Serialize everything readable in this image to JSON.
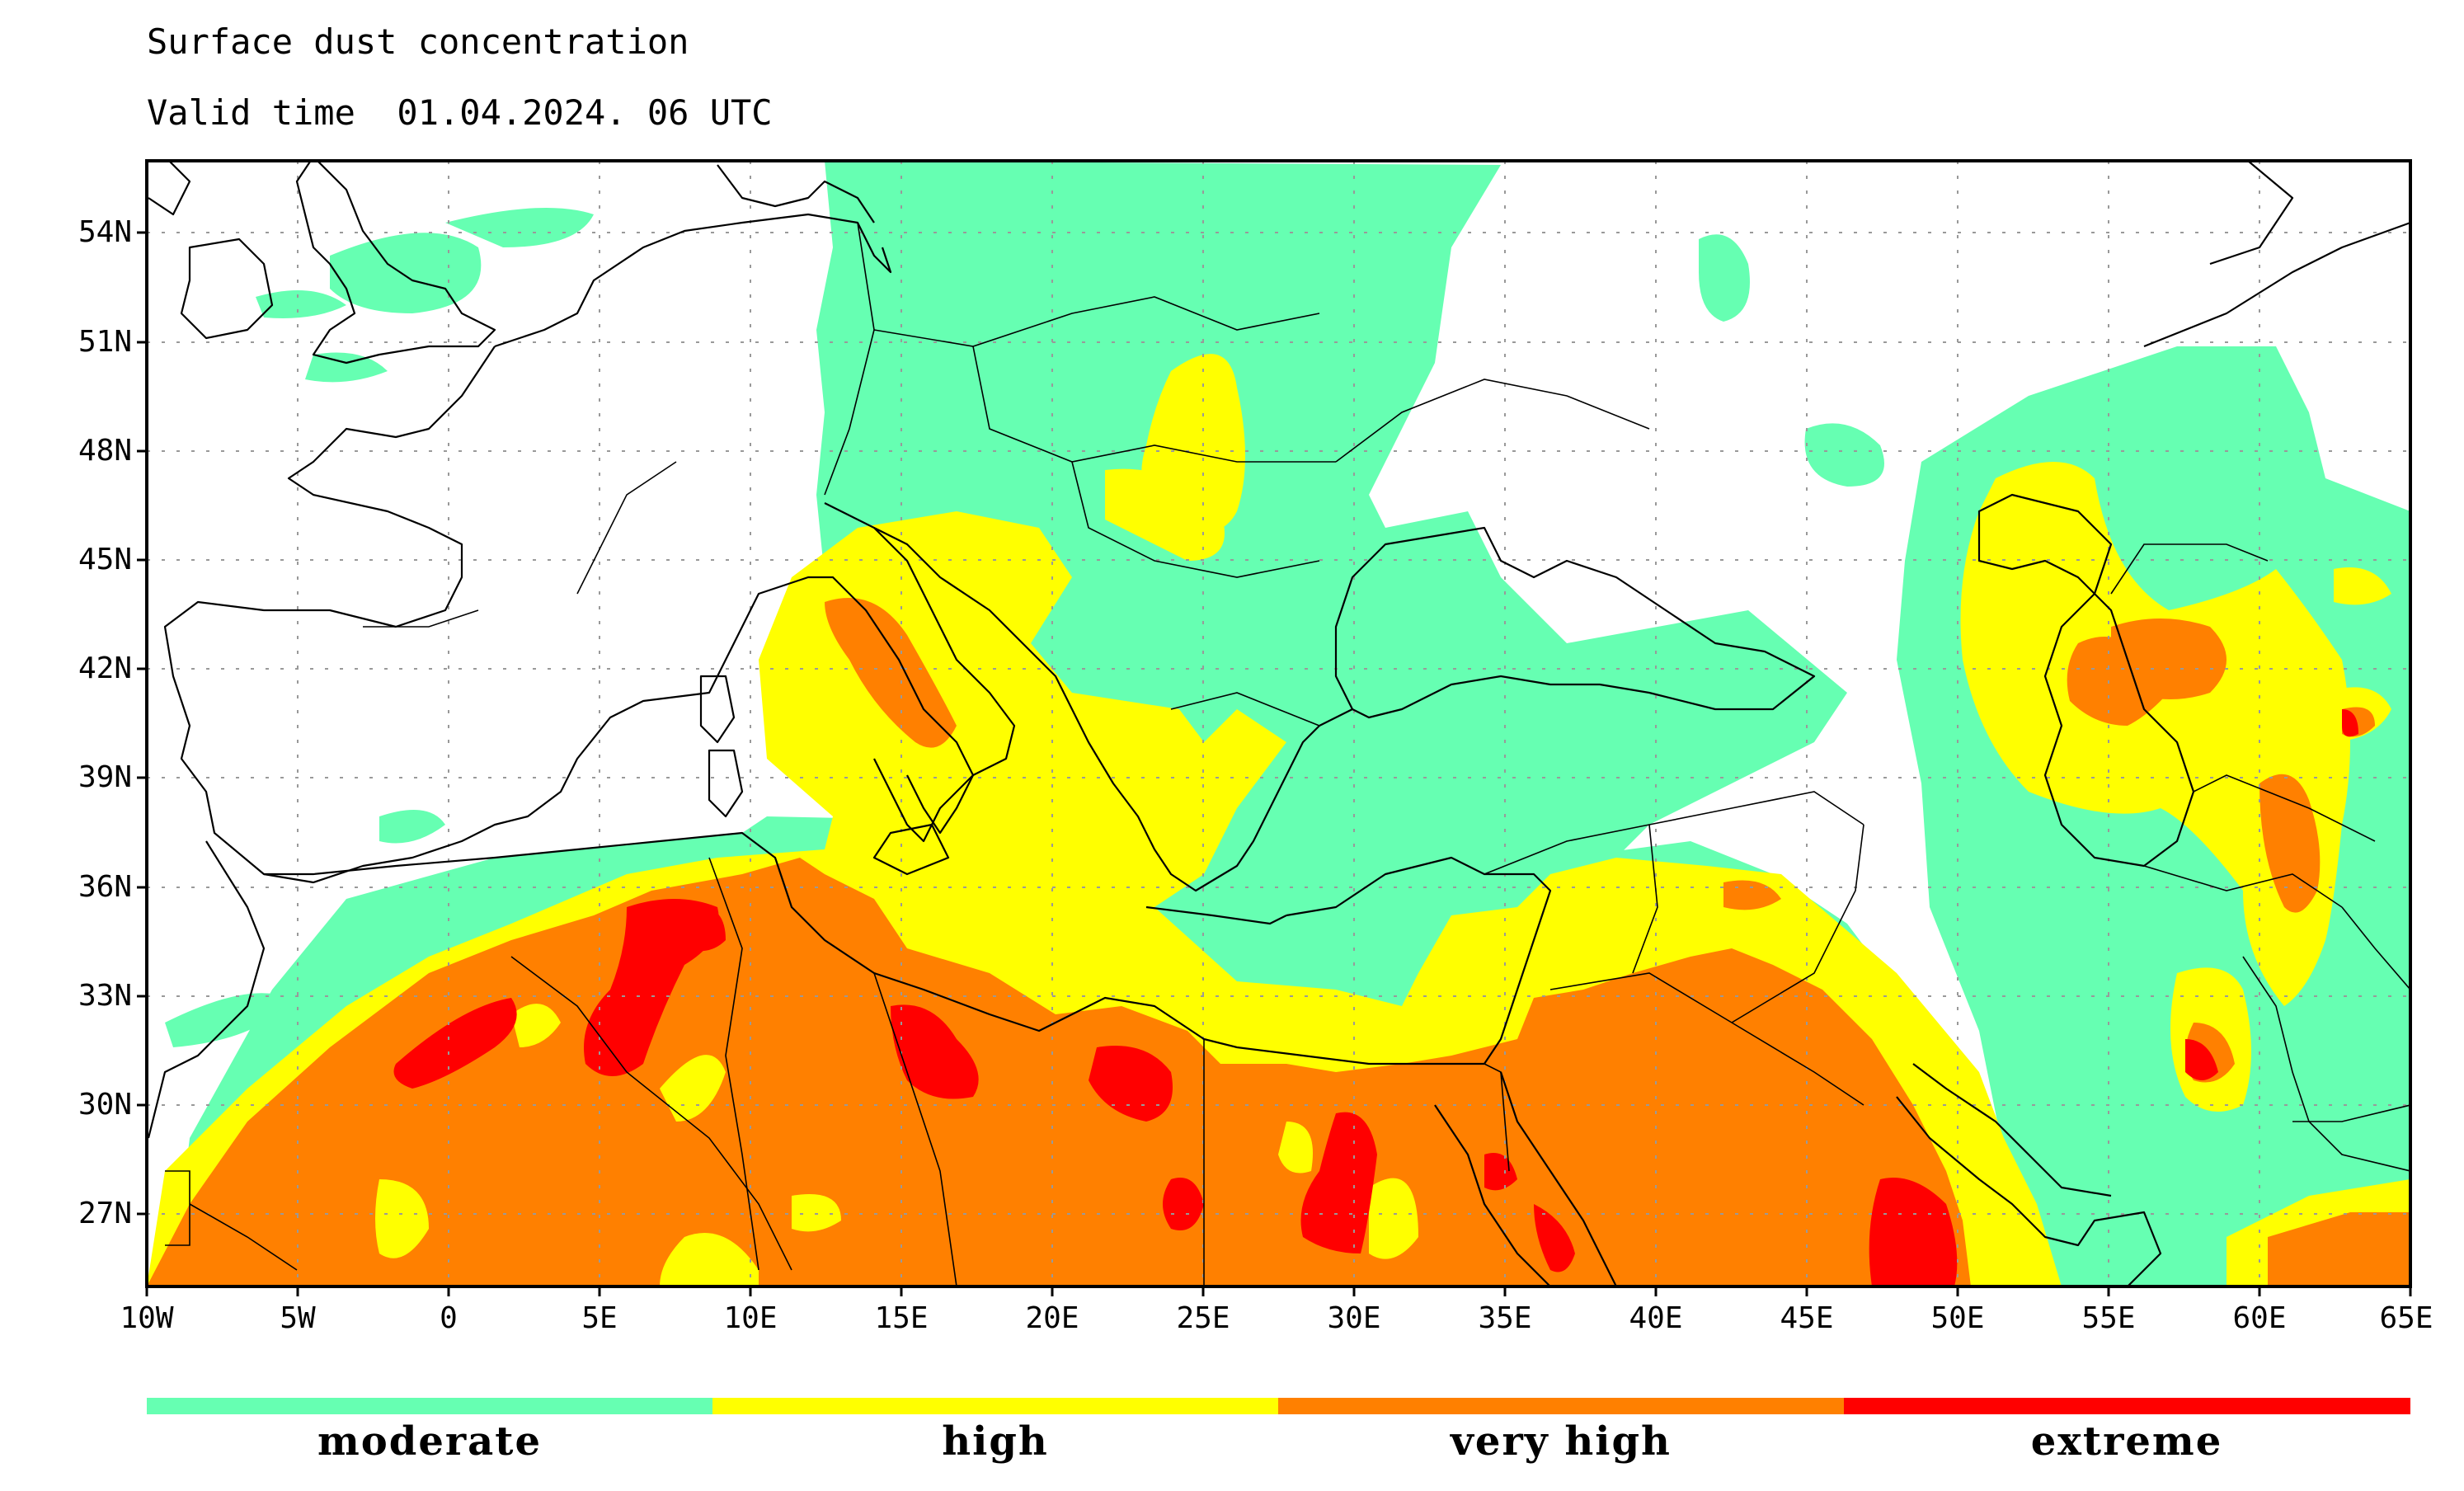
{
  "title": "Surface dust concentration",
  "valid_time": "Valid time  01.04.2024. 06 UTC",
  "map": {
    "lon_range": [
      -10,
      65
    ],
    "lat_range": [
      24.5,
      56
    ],
    "lat_ticks": [
      "54N",
      "51N",
      "48N",
      "45N",
      "42N",
      "39N",
      "36N",
      "33N",
      "30N",
      "27N"
    ],
    "lon_ticks": [
      "10W",
      "5W",
      "0",
      "5E",
      "10E",
      "15E",
      "20E",
      "25E",
      "30E",
      "35E",
      "40E",
      "45E",
      "50E",
      "55E",
      "60E",
      "65E"
    ]
  },
  "legend": [
    {
      "label": "moderate",
      "color": "#66ffb2"
    },
    {
      "label": "high",
      "color": "#ffff00"
    },
    {
      "label": "very high",
      "color": "#ff8000"
    },
    {
      "label": "extreme",
      "color": "#ff0000"
    }
  ]
}
